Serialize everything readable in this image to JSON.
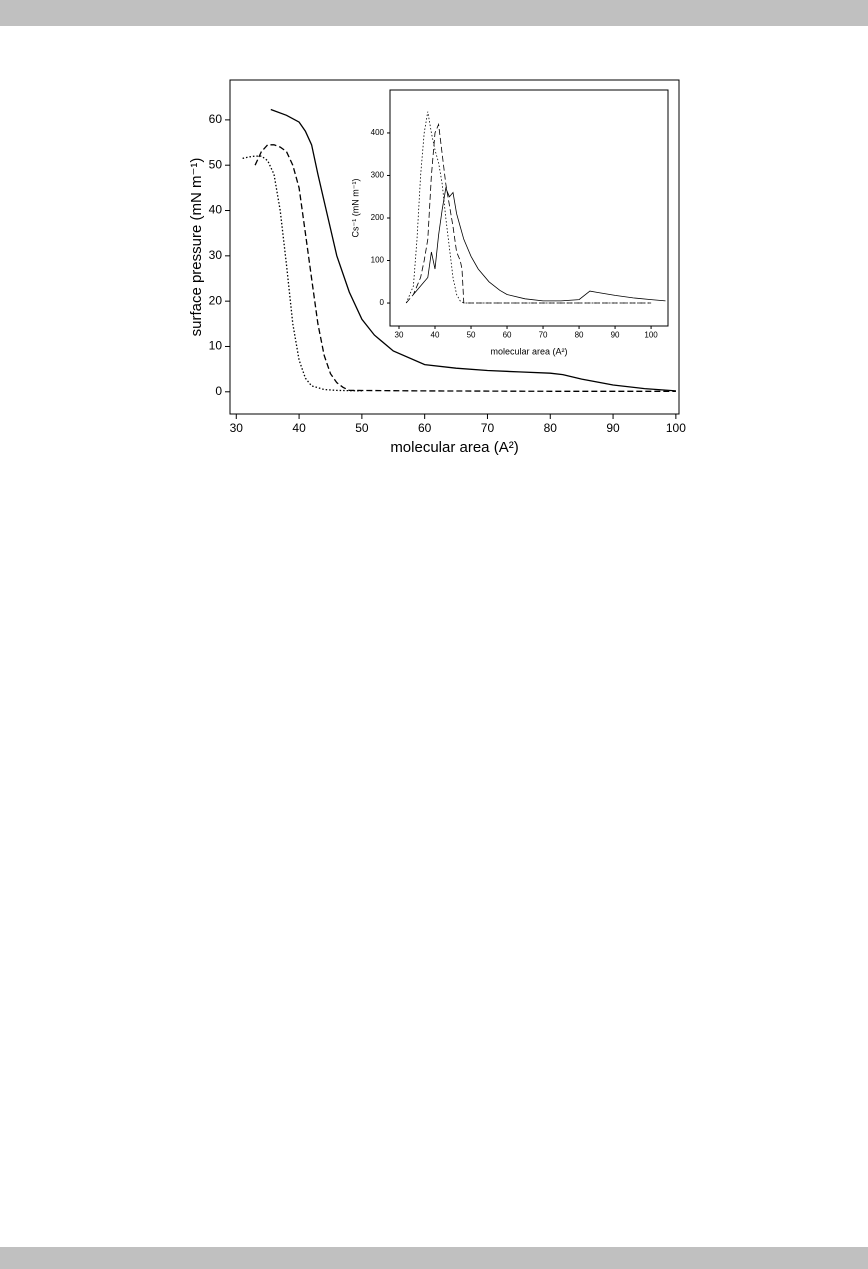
{
  "chart_data": [
    {
      "type": "line",
      "xlabel": "molecular area (A²)",
      "ylabel": "surface pressure (mN m⁻¹)",
      "xlim": [
        29,
        100.5
      ],
      "ylim": [
        -4.9,
        68.8
      ],
      "xticks": [
        30,
        40,
        50,
        60,
        70,
        80,
        90,
        100
      ],
      "yticks": [
        0,
        10,
        20,
        30,
        40,
        50,
        60
      ],
      "series": [
        {
          "color": "#000000",
          "dash": "solid",
          "x": [
            35.5,
            38,
            40,
            41,
            42,
            43,
            44,
            45,
            46,
            48,
            50,
            52,
            55,
            60,
            65,
            70,
            75,
            80,
            82,
            85,
            90,
            95,
            100
          ],
          "values": [
            62.3,
            61,
            59.5,
            57.5,
            54.5,
            48,
            42,
            36,
            30,
            22,
            16,
            12.5,
            9,
            6,
            5.2,
            4.7,
            4.4,
            4.1,
            3.8,
            2.8,
            1.5,
            0.7,
            0.2
          ]
        },
        {
          "color": "#000000",
          "dash": "dashed",
          "x": [
            33,
            34,
            35,
            36,
            37,
            38,
            39,
            40,
            41,
            42,
            43,
            44,
            45,
            46,
            47,
            48,
            60,
            80,
            100
          ],
          "values": [
            50,
            53,
            54.5,
            54.5,
            54,
            53,
            50,
            45,
            35,
            25,
            15,
            8,
            4,
            2,
            1,
            0.3,
            0.2,
            0.1,
            0.1
          ]
        },
        {
          "color": "#000000",
          "dash": "dotted",
          "x": [
            31,
            32,
            33,
            34,
            35,
            36,
            37,
            38,
            39,
            40,
            41,
            42,
            44,
            46,
            50
          ],
          "values": [
            51.5,
            51.8,
            52,
            52,
            51,
            48,
            40,
            28,
            15,
            7,
            3,
            1.3,
            0.5,
            0.3,
            0.2
          ]
        }
      ]
    },
    {
      "type": "line",
      "xlabel": "molecular area (A²)",
      "ylabel": "Cs⁻¹ (mN m⁻¹)",
      "xlim": [
        27.5,
        104.7
      ],
      "ylim": [
        -54,
        501
      ],
      "xticks": [
        30,
        40,
        50,
        60,
        70,
        80,
        90,
        100
      ],
      "yticks": [
        0,
        100,
        200,
        300,
        400
      ],
      "series": [
        {
          "color": "#000000",
          "dash": "solid",
          "x": [
            34,
            36,
            38,
            39,
            40,
            41,
            42,
            43,
            44,
            45,
            46,
            47,
            48,
            50,
            52,
            55,
            58,
            60,
            65,
            70,
            75,
            80,
            83,
            85,
            90,
            95,
            100,
            104
          ],
          "values": [
            20,
            40,
            60,
            120,
            80,
            160,
            220,
            270,
            250,
            260,
            210,
            180,
            150,
            110,
            80,
            50,
            30,
            20,
            10,
            5,
            5,
            8,
            28,
            25,
            18,
            12,
            8,
            5
          ]
        },
        {
          "color": "#000000",
          "dash": "dashed",
          "x": [
            32,
            34,
            36,
            37,
            38,
            39,
            40,
            41,
            42,
            43,
            44,
            45,
            46,
            47,
            47.5,
            48,
            50,
            60,
            80,
            100
          ],
          "values": [
            0,
            20,
            60,
            100,
            150,
            300,
            400,
            420,
            350,
            280,
            230,
            180,
            120,
            100,
            80,
            0,
            0,
            0,
            0,
            0
          ]
        },
        {
          "color": "#000000",
          "dash": "dotted",
          "x": [
            32,
            33,
            34,
            35,
            36,
            37,
            38,
            39,
            40,
            41,
            42,
            43,
            44,
            45,
            46,
            47,
            48,
            60,
            80,
            100
          ],
          "values": [
            0,
            20,
            40,
            150,
            300,
            400,
            450,
            400,
            360,
            330,
            280,
            200,
            130,
            60,
            20,
            5,
            0,
            0,
            0,
            0
          ]
        }
      ]
    }
  ]
}
